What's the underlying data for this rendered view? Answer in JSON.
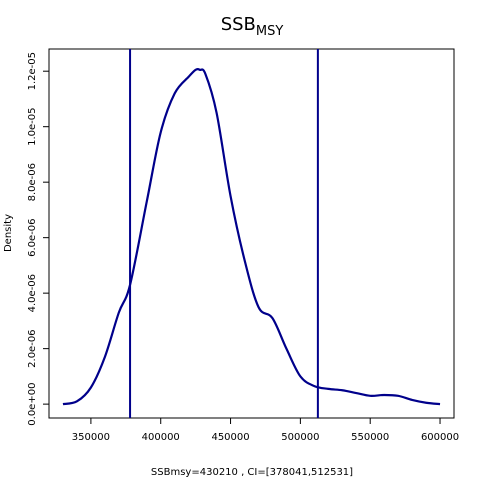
{
  "chart_data": {
    "type": "line",
    "title": "SSB",
    "title_subscript": "MSY",
    "xlabel": "SSBmsy=430210 , CI=[378041,512531]",
    "ylabel": "Density",
    "xlim": [
      320000,
      610000
    ],
    "ylim": [
      -5e-07,
      1.28e-05
    ],
    "x_ticks": [
      350000,
      400000,
      450000,
      500000,
      550000,
      600000
    ],
    "x_tick_labels": [
      "350000",
      "400000",
      "450000",
      "500000",
      "550000",
      "600000"
    ],
    "y_ticks": [
      0,
      2e-06,
      4e-06,
      6e-06,
      8e-06,
      1e-05,
      1.2e-05
    ],
    "y_tick_labels": [
      "0.0e+00",
      "2.0e-06",
      "4.0e-06",
      "6.0e-06",
      "8.0e-06",
      "1.0e-05",
      "1.2e-05"
    ],
    "line_color": "#00008b",
    "series": [
      {
        "x": [
          330000,
          340000,
          350000,
          360000,
          370000,
          378041,
          390000,
          400000,
          410000,
          420000,
          425000,
          428000,
          432000,
          440000,
          450000,
          460000,
          470000,
          480000,
          490000,
          500000,
          510000,
          520000,
          530000,
          540000,
          550000,
          560000,
          570000,
          580000,
          590000,
          600000
        ],
        "y": [
          0,
          1e-07,
          6e-07,
          1.7e-06,
          3.3e-06,
          4.3e-06,
          7.3e-06,
          9.8e-06,
          1.12e-05,
          1.18e-05,
          1.205e-05,
          1.205e-05,
          1.19e-05,
          1.05e-05,
          7.5e-06,
          5.2e-06,
          3.5e-06,
          3.1e-06,
          2e-06,
          1e-06,
          6.5e-07,
          5.5e-07,
          5e-07,
          4e-07,
          3e-07,
          3.3e-07,
          3e-07,
          1.5e-07,
          5e-08,
          0
        ]
      }
    ],
    "vlines": [
      378041,
      512531
    ]
  }
}
